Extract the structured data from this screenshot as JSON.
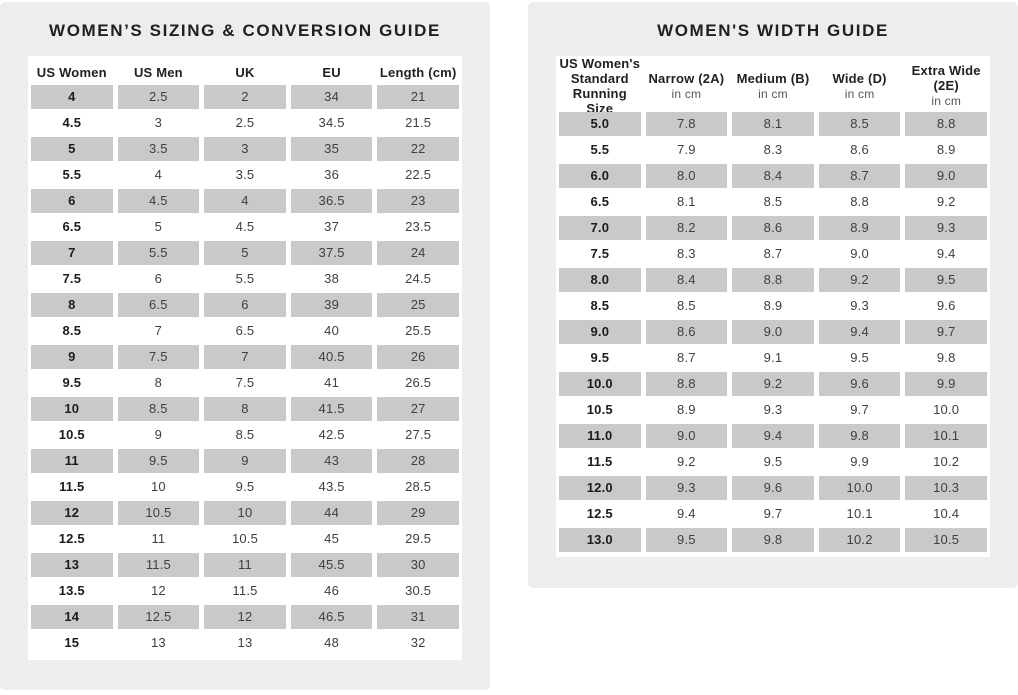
{
  "colors": {
    "panel_bg": "#ededed",
    "card_bg": "#ffffff",
    "row_gray": "#c9c9c9",
    "title_color": "#1f1f1f",
    "header_color": "#212121",
    "value_color": "#3f3f3f",
    "sub_color": "#555555"
  },
  "chart_data": [
    {
      "type": "table",
      "title": "WOMEN’S SIZING & CONVERSION GUIDE",
      "columns": [
        "US Women",
        "US Men",
        "UK",
        "EU",
        "Length (cm)"
      ],
      "rows": [
        [
          "4",
          "2.5",
          "2",
          "34",
          "21"
        ],
        [
          "4.5",
          "3",
          "2.5",
          "34.5",
          "21.5"
        ],
        [
          "5",
          "3.5",
          "3",
          "35",
          "22"
        ],
        [
          "5.5",
          "4",
          "3.5",
          "36",
          "22.5"
        ],
        [
          "6",
          "4.5",
          "4",
          "36.5",
          "23"
        ],
        [
          "6.5",
          "5",
          "4.5",
          "37",
          "23.5"
        ],
        [
          "7",
          "5.5",
          "5",
          "37.5",
          "24"
        ],
        [
          "7.5",
          "6",
          "5.5",
          "38",
          "24.5"
        ],
        [
          "8",
          "6.5",
          "6",
          "39",
          "25"
        ],
        [
          "8.5",
          "7",
          "6.5",
          "40",
          "25.5"
        ],
        [
          "9",
          "7.5",
          "7",
          "40.5",
          "26"
        ],
        [
          "9.5",
          "8",
          "7.5",
          "41",
          "26.5"
        ],
        [
          "10",
          "8.5",
          "8",
          "41.5",
          "27"
        ],
        [
          "10.5",
          "9",
          "8.5",
          "42.5",
          "27.5"
        ],
        [
          "11",
          "9.5",
          "9",
          "43",
          "28"
        ],
        [
          "11.5",
          "10",
          "9.5",
          "43.5",
          "28.5"
        ],
        [
          "12",
          "10.5",
          "10",
          "44",
          "29"
        ],
        [
          "12.5",
          "11",
          "10.5",
          "45",
          "29.5"
        ],
        [
          "13",
          "11.5",
          "11",
          "45.5",
          "30"
        ],
        [
          "13.5",
          "12",
          "11.5",
          "46",
          "30.5"
        ],
        [
          "14",
          "12.5",
          "12",
          "46.5",
          "31"
        ],
        [
          "15",
          "13",
          "13",
          "48",
          "32"
        ]
      ],
      "layout": {
        "first_row_shaded": true,
        "stripe_color": "#c9c9c9"
      }
    },
    {
      "type": "table",
      "title": "WOMEN'S WIDTH GUIDE",
      "columns": [
        {
          "label": "US Women's Standard Running Size",
          "sub": ""
        },
        {
          "label": "Narrow (2A)",
          "sub": "in cm"
        },
        {
          "label": "Medium (B)",
          "sub": "in cm"
        },
        {
          "label": "Wide (D)",
          "sub": "in cm"
        },
        {
          "label": "Extra Wide (2E)",
          "sub": "in cm"
        }
      ],
      "rows": [
        [
          "5.0",
          "7.8",
          "8.1",
          "8.5",
          "8.8"
        ],
        [
          "5.5",
          "7.9",
          "8.3",
          "8.6",
          "8.9"
        ],
        [
          "6.0",
          "8.0",
          "8.4",
          "8.7",
          "9.0"
        ],
        [
          "6.5",
          "8.1",
          "8.5",
          "8.8",
          "9.2"
        ],
        [
          "7.0",
          "8.2",
          "8.6",
          "8.9",
          "9.3"
        ],
        [
          "7.5",
          "8.3",
          "8.7",
          "9.0",
          "9.4"
        ],
        [
          "8.0",
          "8.4",
          "8.8",
          "9.2",
          "9.5"
        ],
        [
          "8.5",
          "8.5",
          "8.9",
          "9.3",
          "9.6"
        ],
        [
          "9.0",
          "8.6",
          "9.0",
          "9.4",
          "9.7"
        ],
        [
          "9.5",
          "8.7",
          "9.1",
          "9.5",
          "9.8"
        ],
        [
          "10.0",
          "8.8",
          "9.2",
          "9.6",
          "9.9"
        ],
        [
          "10.5",
          "8.9",
          "9.3",
          "9.7",
          "10.0"
        ],
        [
          "11.0",
          "9.0",
          "9.4",
          "9.8",
          "10.1"
        ],
        [
          "11.5",
          "9.2",
          "9.5",
          "9.9",
          "10.2"
        ],
        [
          "12.0",
          "9.3",
          "9.6",
          "10.0",
          "10.3"
        ],
        [
          "12.5",
          "9.4",
          "9.7",
          "10.1",
          "10.4"
        ],
        [
          "13.0",
          "9.5",
          "9.8",
          "10.2",
          "10.5"
        ]
      ],
      "layout": {
        "first_row_shaded": true,
        "stripe_color": "#c9c9c9"
      }
    }
  ]
}
